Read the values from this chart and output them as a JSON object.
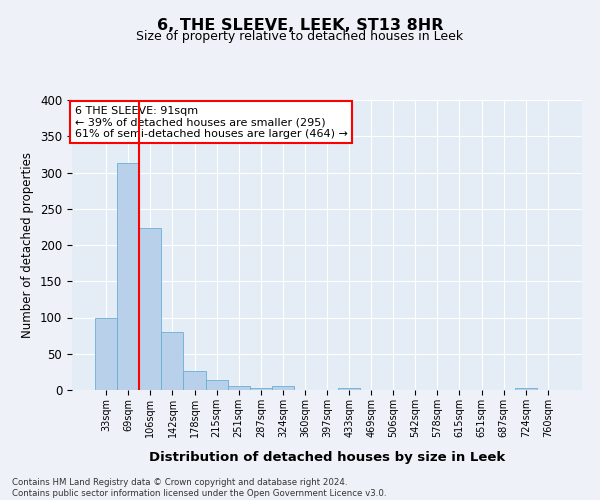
{
  "title": "6, THE SLEEVE, LEEK, ST13 8HR",
  "subtitle": "Size of property relative to detached houses in Leek",
  "xlabel": "Distribution of detached houses by size in Leek",
  "ylabel": "Number of detached properties",
  "bar_labels": [
    "33sqm",
    "69sqm",
    "106sqm",
    "142sqm",
    "178sqm",
    "215sqm",
    "251sqm",
    "287sqm",
    "324sqm",
    "360sqm",
    "397sqm",
    "433sqm",
    "469sqm",
    "506sqm",
    "542sqm",
    "578sqm",
    "615sqm",
    "651sqm",
    "687sqm",
    "724sqm",
    "760sqm"
  ],
  "bar_values": [
    99,
    313,
    224,
    80,
    26,
    14,
    5,
    3,
    5,
    0,
    0,
    3,
    0,
    0,
    0,
    0,
    0,
    0,
    0,
    3,
    0
  ],
  "bar_color": "#b8d0ea",
  "bar_edge_color": "#6aaed6",
  "vline_color": "red",
  "ylim": [
    0,
    400
  ],
  "yticks": [
    0,
    50,
    100,
    150,
    200,
    250,
    300,
    350,
    400
  ],
  "annotation_line1": "6 THE SLEEVE: 91sqm",
  "annotation_line2": "← 39% of detached houses are smaller (295)",
  "annotation_line3": "61% of semi-detached houses are larger (464) →",
  "footer_line1": "Contains HM Land Registry data © Crown copyright and database right 2024.",
  "footer_line2": "Contains public sector information licensed under the Open Government Licence v3.0.",
  "bg_color": "#eef2f8",
  "plot_bg_color": "#e4ecf5"
}
